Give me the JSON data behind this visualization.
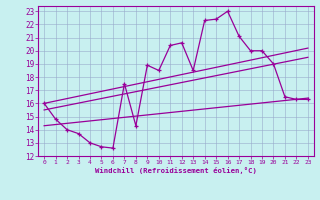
{
  "xlabel": "Windchill (Refroidissement éolien,°C)",
  "bg_color": "#c8f0f0",
  "grid_color": "#99aacc",
  "line_color": "#990099",
  "xlim": [
    -0.5,
    23.5
  ],
  "ylim": [
    12,
    23.4
  ],
  "xticks": [
    0,
    1,
    2,
    3,
    4,
    5,
    6,
    7,
    8,
    9,
    10,
    11,
    12,
    13,
    14,
    15,
    16,
    17,
    18,
    19,
    20,
    21,
    22,
    23
  ],
  "yticks": [
    12,
    13,
    14,
    15,
    16,
    17,
    18,
    19,
    20,
    21,
    22,
    23
  ],
  "line1_x": [
    0,
    1,
    2,
    3,
    4,
    5,
    6,
    7,
    8,
    9,
    10,
    11,
    12,
    13,
    14,
    15,
    16,
    17,
    18,
    19,
    20,
    21,
    22,
    23
  ],
  "line1_y": [
    16.0,
    14.8,
    14.0,
    13.7,
    13.0,
    12.7,
    12.6,
    17.5,
    14.3,
    18.9,
    18.5,
    20.4,
    20.6,
    18.5,
    22.3,
    22.4,
    23.0,
    21.1,
    20.0,
    20.0,
    19.0,
    16.5,
    16.3,
    16.3
  ],
  "line2_x": [
    0,
    23
  ],
  "line2_y": [
    16.0,
    20.2
  ],
  "line3_x": [
    0,
    23
  ],
  "line3_y": [
    15.5,
    19.5
  ],
  "line4_x": [
    0,
    23
  ],
  "line4_y": [
    14.3,
    16.4
  ]
}
